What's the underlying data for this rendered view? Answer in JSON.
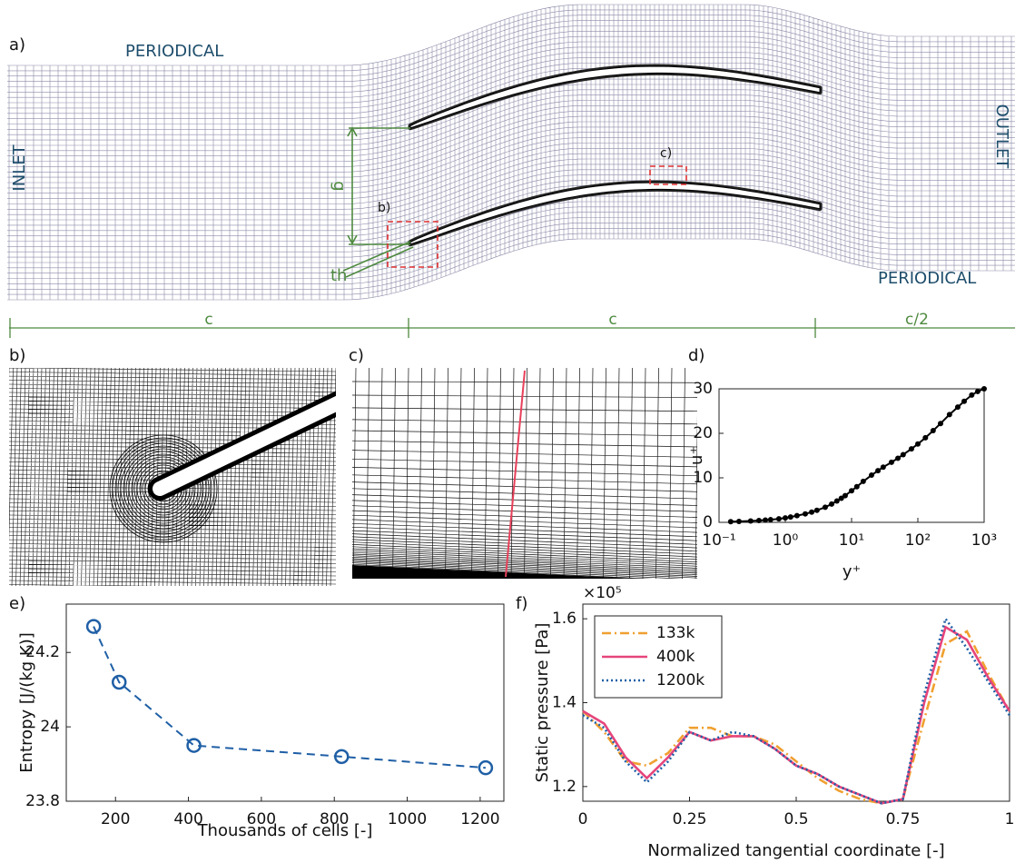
{
  "panel_a": {
    "label": "a)",
    "periodic_top": "PERIODICAL",
    "periodic_bottom": "PERIODICAL",
    "inlet": "INLET",
    "outlet": "OUTLET",
    "pitch": "g",
    "throat": "th",
    "zoom_b": "b)",
    "zoom_c": "c)",
    "dimensions": [
      "c",
      "c",
      "c/2"
    ]
  },
  "panel_b": {
    "label": "b)"
  },
  "panel_c": {
    "label": "c)"
  },
  "chart_data": [
    {
      "type": "line",
      "panel_label": "d)",
      "xlabel": "y⁺",
      "ylabel": "u⁺",
      "x": [
        0.15,
        0.2,
        0.3,
        0.4,
        0.5,
        0.6,
        0.8,
        1,
        1.2,
        1.5,
        2,
        2.5,
        3,
        4,
        5,
        6,
        7,
        8,
        10,
        12,
        15,
        20,
        25,
        30,
        40,
        50,
        60,
        80,
        100,
        130,
        170,
        220,
        300,
        400,
        500,
        650,
        800,
        1000
      ],
      "values": [
        0.15,
        0.2,
        0.3,
        0.4,
        0.5,
        0.6,
        0.8,
        1.0,
        1.2,
        1.5,
        1.9,
        2.3,
        2.7,
        3.4,
        4.1,
        4.8,
        5.4,
        6.0,
        7.1,
        8.0,
        9.2,
        10.6,
        11.6,
        12.4,
        13.5,
        14.4,
        15.2,
        16.5,
        17.6,
        19.0,
        20.6,
        22.2,
        24.2,
        25.9,
        27.2,
        28.6,
        29.4,
        30.0
      ],
      "color": "#000000",
      "line_style": "solid",
      "marker": "dot",
      "xscale": "log",
      "xlim": [
        0.1,
        1000
      ],
      "xticks": [
        {
          "value": 0.1,
          "label": "10⁻¹"
        },
        {
          "value": 1,
          "label": "10⁰"
        },
        {
          "value": 10,
          "label": "10¹"
        },
        {
          "value": 100,
          "label": "10²"
        },
        {
          "value": 1000,
          "label": "10³"
        }
      ],
      "ylim": [
        0,
        30
      ],
      "yticks": [
        0,
        10,
        20,
        30
      ]
    },
    {
      "type": "line",
      "panel_label": "e)",
      "xlabel": "Thousands of cells [-]",
      "ylabel": "Entropy  [J/(kg K)]",
      "x": [
        140,
        210,
        415,
        820,
        1215
      ],
      "values": [
        24.27,
        24.12,
        23.95,
        23.92,
        23.89
      ],
      "color": "#1f5fa6",
      "line_style": "dashed",
      "marker": "circle",
      "xlim": [
        65,
        1265
      ],
      "xticks": [
        200,
        400,
        600,
        800,
        1000,
        1200
      ],
      "ylim": [
        23.8,
        24.33
      ],
      "yticks": [
        23.8,
        24,
        24.2
      ]
    },
    {
      "type": "line",
      "panel_label": "f)",
      "xlabel": "Normalized tangential coordinate [-]",
      "ylabel": "Static pressure [Pa]",
      "y_exponent_label": "×10⁵",
      "x": [
        0,
        0.05,
        0.1,
        0.15,
        0.2,
        0.25,
        0.3,
        0.35,
        0.4,
        0.45,
        0.5,
        0.55,
        0.6,
        0.65,
        0.7,
        0.75,
        0.8,
        0.85,
        0.9,
        0.95,
        1
      ],
      "series": [
        {
          "name": "133k",
          "color": "#f0a030",
          "line_style": "dashdot",
          "values": [
            1.38,
            1.33,
            1.26,
            1.25,
            1.28,
            1.34,
            1.34,
            1.32,
            1.32,
            1.3,
            1.26,
            1.22,
            1.19,
            1.17,
            1.16,
            1.17,
            1.36,
            1.54,
            1.57,
            1.47,
            1.38
          ]
        },
        {
          "name": "400k",
          "color": "#e6457c",
          "line_style": "solid",
          "values": [
            1.38,
            1.35,
            1.27,
            1.22,
            1.27,
            1.33,
            1.31,
            1.32,
            1.32,
            1.29,
            1.25,
            1.23,
            1.2,
            1.18,
            1.16,
            1.17,
            1.4,
            1.58,
            1.55,
            1.46,
            1.38
          ]
        },
        {
          "name": "1200k",
          "color": "#1f5fa6",
          "line_style": "dotted",
          "values": [
            1.37,
            1.34,
            1.26,
            1.21,
            1.26,
            1.33,
            1.31,
            1.33,
            1.32,
            1.29,
            1.25,
            1.23,
            1.2,
            1.18,
            1.16,
            1.17,
            1.42,
            1.6,
            1.53,
            1.45,
            1.37
          ]
        }
      ],
      "legend": "upper left",
      "xlim": [
        0,
        1
      ],
      "xticks": [
        0,
        0.25,
        0.5,
        0.75,
        1
      ],
      "ylim": [
        1.165,
        1.635
      ],
      "yticks": [
        1.2,
        1.4,
        1.6
      ]
    }
  ]
}
